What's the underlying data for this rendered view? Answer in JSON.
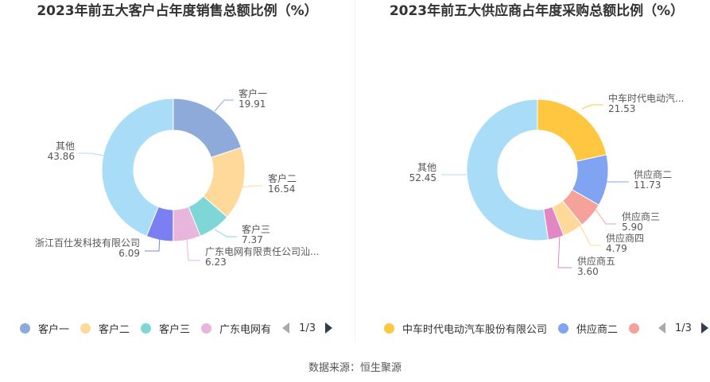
{
  "source_label": "数据来源：恒生聚源",
  "chart_data": [
    {
      "type": "pie",
      "title": "2023年前五大客户占年度销售总额比例（%）",
      "slices": [
        {
          "name": "客户一",
          "label": "客户一",
          "value": 19.91,
          "value_text": "19.91",
          "color": "#8eaadb"
        },
        {
          "name": "客户二",
          "label": "客户二",
          "value": 16.54,
          "value_text": "16.54",
          "color": "#ffd99a"
        },
        {
          "name": "客户三",
          "label": "客户三",
          "value": 7.37,
          "value_text": "7.37",
          "color": "#7fd6d6"
        },
        {
          "name": "广东电网有限责任公司汕头供电局",
          "label": "广东电网有限责任公司汕...",
          "value": 6.23,
          "value_text": "6.23",
          "color": "#e8b6dc"
        },
        {
          "name": "浙江百仕发科技有限公司",
          "label": "浙江百仕发科技有限公司",
          "value": 6.09,
          "value_text": "6.09",
          "color": "#7b7ff2"
        },
        {
          "name": "其他",
          "label": "其他",
          "value": 43.86,
          "value_text": "43.86",
          "color": "#a9ddf7"
        }
      ],
      "legend": {
        "items": [
          {
            "label": "客户一",
            "color": "#8eaadb"
          },
          {
            "label": "客户二",
            "color": "#ffd99a"
          },
          {
            "label": "客户三",
            "color": "#7fd6d6"
          },
          {
            "label": "广东电网有",
            "color": "#e8b6dc"
          }
        ],
        "page": "1/3"
      }
    },
    {
      "type": "pie",
      "title": "2023年前五大供应商占年度采购总额比例（%）",
      "slices": [
        {
          "name": "中车时代电动汽车股份有限公司",
          "label": "中车时代电动汽...",
          "value": 21.53,
          "value_text": "21.53",
          "color": "#ffc740"
        },
        {
          "name": "供应商二",
          "label": "供应商二",
          "value": 11.73,
          "value_text": "11.73",
          "color": "#80a4f2"
        },
        {
          "name": "供应商三",
          "label": "供应商三",
          "value": 5.9,
          "value_text": "5.90",
          "color": "#f5a29b"
        },
        {
          "name": "供应商四",
          "label": "供应商四",
          "value": 4.79,
          "value_text": "4.79",
          "color": "#ffd99a"
        },
        {
          "name": "供应商五",
          "label": "供应商五",
          "value": 3.6,
          "value_text": "3.60",
          "color": "#e286c4"
        },
        {
          "name": "其他",
          "label": "其他",
          "value": 52.45,
          "value_text": "52.45",
          "color": "#a9ddf7"
        }
      ],
      "legend": {
        "items": [
          {
            "label": "中车时代电动汽车股份有限公司",
            "color": "#ffc740"
          },
          {
            "label": "供应商二",
            "color": "#80a4f2"
          },
          {
            "label": "",
            "color": "#f5a29b"
          }
        ],
        "page": "1/3"
      }
    }
  ]
}
